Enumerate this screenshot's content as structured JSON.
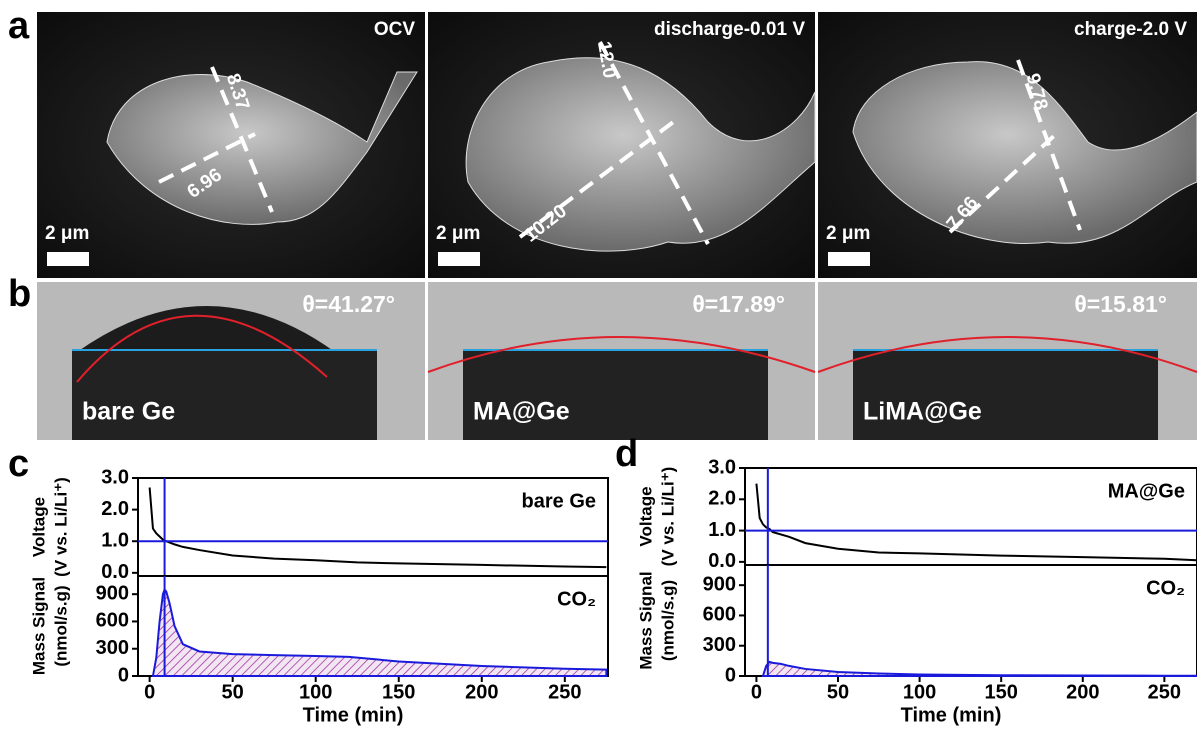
{
  "panel_a": {
    "label": "a",
    "images": [
      {
        "title": "OCV",
        "scale_bar": "2 μm",
        "measurements": [
          "8.37",
          "6.96"
        ]
      },
      {
        "title": "discharge-0.01 V",
        "scale_bar": "2 μm",
        "measurements": [
          "12.0",
          "10.20"
        ]
      },
      {
        "title": "charge-2.0 V",
        "scale_bar": "2 μm",
        "measurements": [
          "9.78",
          "7.66"
        ]
      }
    ]
  },
  "panel_b": {
    "label": "b",
    "images": [
      {
        "angle": "θ=41.27°",
        "sample": "bare Ge"
      },
      {
        "angle": "θ=17.89°",
        "sample": "MA@Ge"
      },
      {
        "angle": "θ=15.81°",
        "sample": "LiMA@Ge"
      }
    ]
  },
  "chart_data": [
    {
      "type": "line",
      "panel": "c",
      "annotation": "bare Ge",
      "ylabel": [
        "Voltage",
        "(V vs. Li/Li⁺)"
      ],
      "color": "#000000",
      "x": [
        0,
        2,
        4,
        6,
        8,
        10,
        15,
        20,
        30,
        50,
        75,
        100,
        125,
        150,
        200,
        250,
        275
      ],
      "values": [
        2.7,
        1.4,
        1.25,
        1.15,
        1.05,
        1.0,
        0.9,
        0.82,
        0.72,
        0.55,
        0.45,
        0.4,
        0.33,
        0.3,
        0.25,
        0.2,
        0.18
      ],
      "xlim": [
        -7,
        276
      ],
      "ylim": [
        -0.1,
        3.0
      ],
      "yticks": [
        {
          "value": 0,
          "label": "0.0"
        },
        {
          "value": 1,
          "label": "1.0"
        },
        {
          "value": 2,
          "label": "2.0"
        },
        {
          "value": 3,
          "label": "3.0"
        }
      ],
      "hline": 1.0,
      "vline": 9
    },
    {
      "type": "area",
      "panel": "c",
      "annotation": "CO₂",
      "ylabel": [
        "Mass Signal",
        "(nmol/s.g)"
      ],
      "xlabel": "Time (min)",
      "color": "#1a1adb",
      "x": [
        2,
        4,
        6,
        8,
        9,
        10,
        12,
        15,
        20,
        30,
        50,
        75,
        100,
        120,
        150,
        200,
        250,
        275
      ],
      "values": [
        0,
        200,
        600,
        900,
        950,
        930,
        800,
        550,
        350,
        270,
        240,
        230,
        220,
        210,
        160,
        110,
        80,
        70
      ],
      "xlim": [
        -7,
        276
      ],
      "ylim": [
        0,
        1100
      ],
      "xticks": [
        0,
        50,
        100,
        150,
        200,
        250
      ],
      "yticks": [
        0,
        300,
        600,
        900
      ],
      "vline": 9
    },
    {
      "type": "line",
      "panel": "d",
      "annotation": "MA@Ge",
      "ylabel": [
        "Voltage",
        "(V vs. Li/Li⁺)"
      ],
      "color": "#000000",
      "x": [
        0,
        2,
        4,
        6,
        8,
        10,
        20,
        30,
        50,
        75,
        100,
        150,
        200,
        250,
        270
      ],
      "values": [
        2.5,
        1.4,
        1.2,
        1.1,
        1.05,
        0.95,
        0.8,
        0.6,
        0.42,
        0.3,
        0.27,
        0.2,
        0.15,
        0.1,
        0.05
      ],
      "xlim": [
        -7,
        270
      ],
      "ylim": [
        -0.1,
        3.0
      ],
      "yticks": [
        {
          "value": 0,
          "label": "0.0"
        },
        {
          "value": 1,
          "label": "1.0"
        },
        {
          "value": 2,
          "label": "2.0"
        },
        {
          "value": 3,
          "label": "3.0"
        }
      ],
      "hline": 1.0,
      "vline": 7
    },
    {
      "type": "area",
      "panel": "d",
      "annotation": "CO₂",
      "ylabel": [
        "Mass Signal",
        "(nmol/s.g)"
      ],
      "xlabel": "Time (min)",
      "color": "#1a1adb",
      "x": [
        4,
        6,
        8,
        10,
        15,
        20,
        30,
        50,
        75,
        100,
        150,
        200,
        250,
        270
      ],
      "values": [
        0,
        100,
        140,
        130,
        120,
        100,
        70,
        40,
        25,
        15,
        8,
        5,
        3,
        2
      ],
      "xlim": [
        -7,
        270
      ],
      "ylim": [
        0,
        1100
      ],
      "xticks": [
        0,
        50,
        100,
        150,
        200,
        250
      ],
      "yticks": [
        0,
        300,
        600,
        900
      ],
      "vline": 7
    }
  ]
}
